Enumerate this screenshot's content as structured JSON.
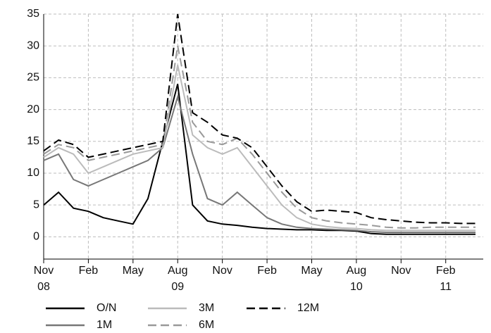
{
  "chart_data": {
    "type": "line",
    "x": [
      "2008-11",
      "2008-12",
      "2009-01",
      "2009-02",
      "2009-03",
      "2009-04",
      "2009-05",
      "2009-06",
      "2009-07",
      "2009-08",
      "2009-09",
      "2009-10",
      "2009-11",
      "2009-12",
      "2010-01",
      "2010-02",
      "2010-03",
      "2010-04",
      "2010-05",
      "2010-06",
      "2010-07",
      "2010-08",
      "2010-09",
      "2010-10",
      "2010-11",
      "2010-12",
      "2011-01",
      "2011-02",
      "2011-03",
      "2011-04"
    ],
    "xticks": [
      {
        "value": "2008-11",
        "label": "Nov"
      },
      {
        "value": "2009-02",
        "label": "Feb"
      },
      {
        "value": "2009-05",
        "label": "May"
      },
      {
        "value": "2009-08",
        "label": "Aug"
      },
      {
        "value": "2009-11",
        "label": "Nov"
      },
      {
        "value": "2010-02",
        "label": "Feb"
      },
      {
        "value": "2010-05",
        "label": "May"
      },
      {
        "value": "2010-08",
        "label": "Aug"
      },
      {
        "value": "2010-11",
        "label": "Nov"
      },
      {
        "value": "2011-02",
        "label": "Feb"
      }
    ],
    "xtick_years": [
      {
        "value": "2008-11",
        "label": "08"
      },
      {
        "value": "2009-08",
        "label": "09"
      },
      {
        "value": "2010-08",
        "label": "10"
      },
      {
        "value": "2011-02",
        "label": "11"
      }
    ],
    "ylim": [
      -3.5,
      35
    ],
    "yticks": [
      0,
      5,
      10,
      15,
      20,
      25,
      30,
      35
    ],
    "grid": true,
    "series": [
      {
        "name": "O/N",
        "color": "#000000",
        "dashed": false,
        "values": [
          5,
          7,
          4.5,
          4,
          3,
          2.5,
          2,
          6,
          15,
          24,
          5,
          2.5,
          2,
          1.8,
          1.5,
          1.3,
          1.2,
          1.1,
          1.1,
          1.0,
          1.0,
          0.9,
          0.5,
          0.4,
          0.4,
          0.4,
          0.4,
          0.4,
          0.4,
          0.4
        ]
      },
      {
        "name": "1M",
        "color": "#777777",
        "dashed": false,
        "values": [
          12,
          13,
          9,
          8,
          9,
          10,
          11,
          12,
          14,
          22,
          13,
          6,
          5,
          7,
          5,
          3,
          2,
          1.5,
          1.3,
          1.2,
          1.1,
          1.0,
          0.8,
          0.7,
          0.7,
          0.7,
          0.7,
          0.7,
          0.7,
          0.7
        ]
      },
      {
        "name": "3M",
        "color": "#bbbbbb",
        "dashed": false,
        "values": [
          12.5,
          14,
          13,
          10,
          11,
          12,
          13,
          13.5,
          14,
          27,
          16,
          14,
          13,
          14,
          11,
          8,
          5,
          3,
          2,
          1.6,
          1.4,
          1.3,
          1.1,
          1.0,
          1.0,
          1.0,
          1.0,
          1.0,
          1.0,
          1.0
        ]
      },
      {
        "name": "6M",
        "color": "#999999",
        "dashed": true,
        "values": [
          13,
          14.5,
          14,
          12,
          12.5,
          13,
          13.5,
          14,
          14.5,
          30,
          18,
          15,
          14.5,
          15.5,
          13,
          10,
          7,
          4.5,
          3,
          2.5,
          2.2,
          2.0,
          1.8,
          1.5,
          1.4,
          1.4,
          1.5,
          1.5,
          1.5,
          1.5
        ]
      },
      {
        "name": "12M",
        "color": "#000000",
        "dashed": true,
        "values": [
          13.5,
          15.2,
          14.5,
          12.5,
          13,
          13.5,
          14,
          14.5,
          15,
          35,
          19.5,
          18,
          16,
          15.5,
          14,
          11,
          8,
          5.5,
          4,
          4.2,
          4.0,
          3.8,
          3.0,
          2.7,
          2.5,
          2.3,
          2.2,
          2.2,
          2.1,
          2.1
        ]
      }
    ]
  }
}
